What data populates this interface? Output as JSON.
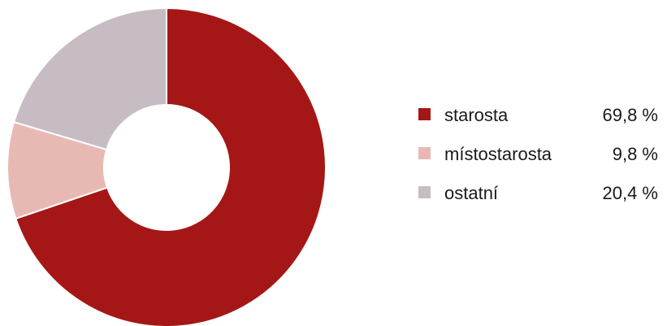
{
  "chart_data": {
    "type": "pie",
    "variant": "donut",
    "categories": [
      "starosta",
      "místostarosta",
      "ostatní"
    ],
    "values": [
      69.8,
      9.8,
      20.4
    ],
    "value_labels": [
      "69,8 %",
      "9,8 %",
      "20,4 %"
    ],
    "colors": [
      "#a51717",
      "#e8b9b3",
      "#c7bcc3"
    ],
    "legend_placement": "right",
    "start_angle": "top",
    "direction": "clockwise"
  }
}
